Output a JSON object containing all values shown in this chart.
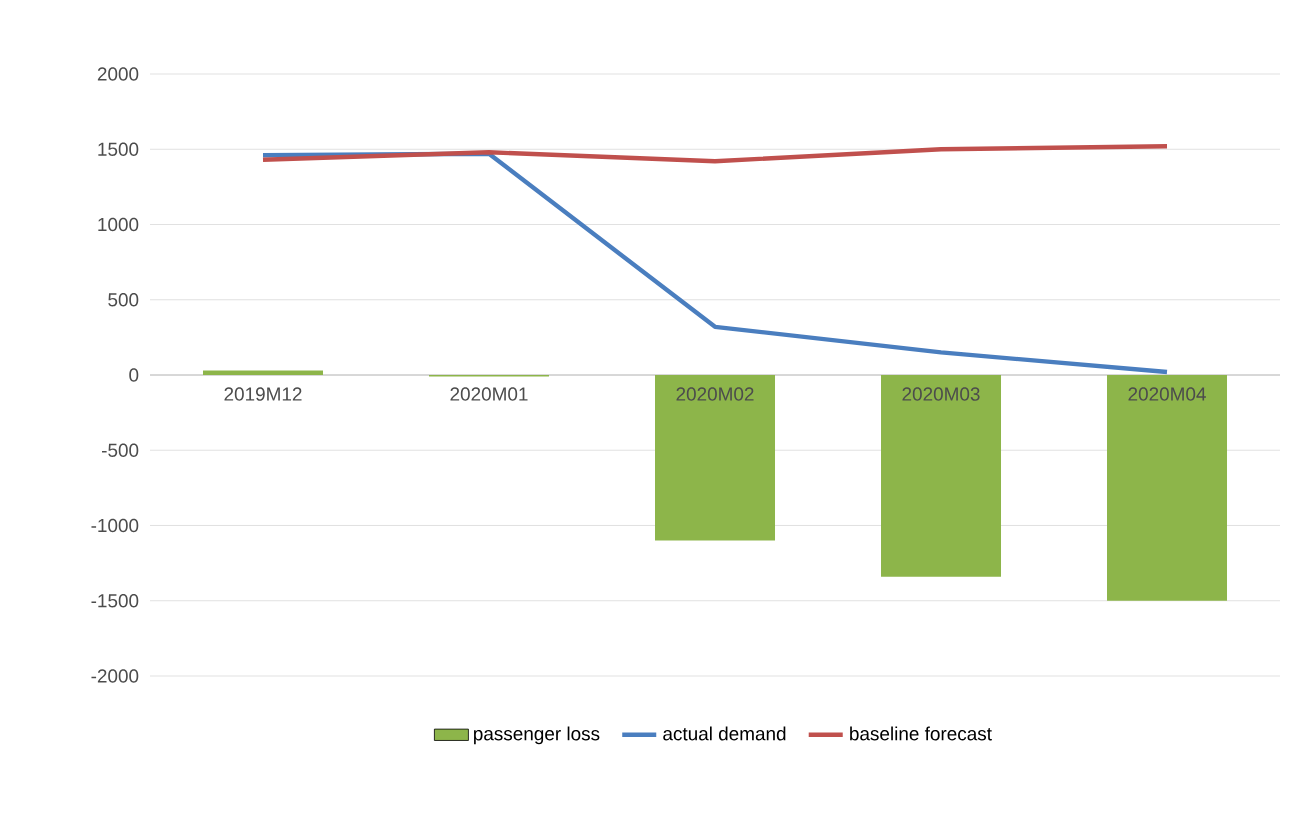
{
  "chart_data": {
    "type": "bar",
    "categories": [
      "2019M12",
      "2020M01",
      "2020M02",
      "2020M03",
      "2020M04"
    ],
    "series": [
      {
        "name": "passenger loss",
        "color": "#8db54a",
        "values": [
          30,
          -10,
          -1100,
          -1340,
          -1500
        ]
      },
      {
        "name": "actual demand",
        "type": "line",
        "color": "#4a7ebf",
        "values": [
          1460,
          1470,
          320,
          150,
          20
        ]
      },
      {
        "name": "baseline forecast",
        "type": "line",
        "color": "#c0504d",
        "values": [
          1430,
          1480,
          1420,
          1500,
          1520
        ]
      }
    ],
    "ylim": [
      -2000,
      2000
    ],
    "yticks": [
      -2000,
      -1500,
      -1000,
      -500,
      0,
      500,
      1000,
      1500,
      2000
    ],
    "grid": "y",
    "legend": "bottom"
  }
}
